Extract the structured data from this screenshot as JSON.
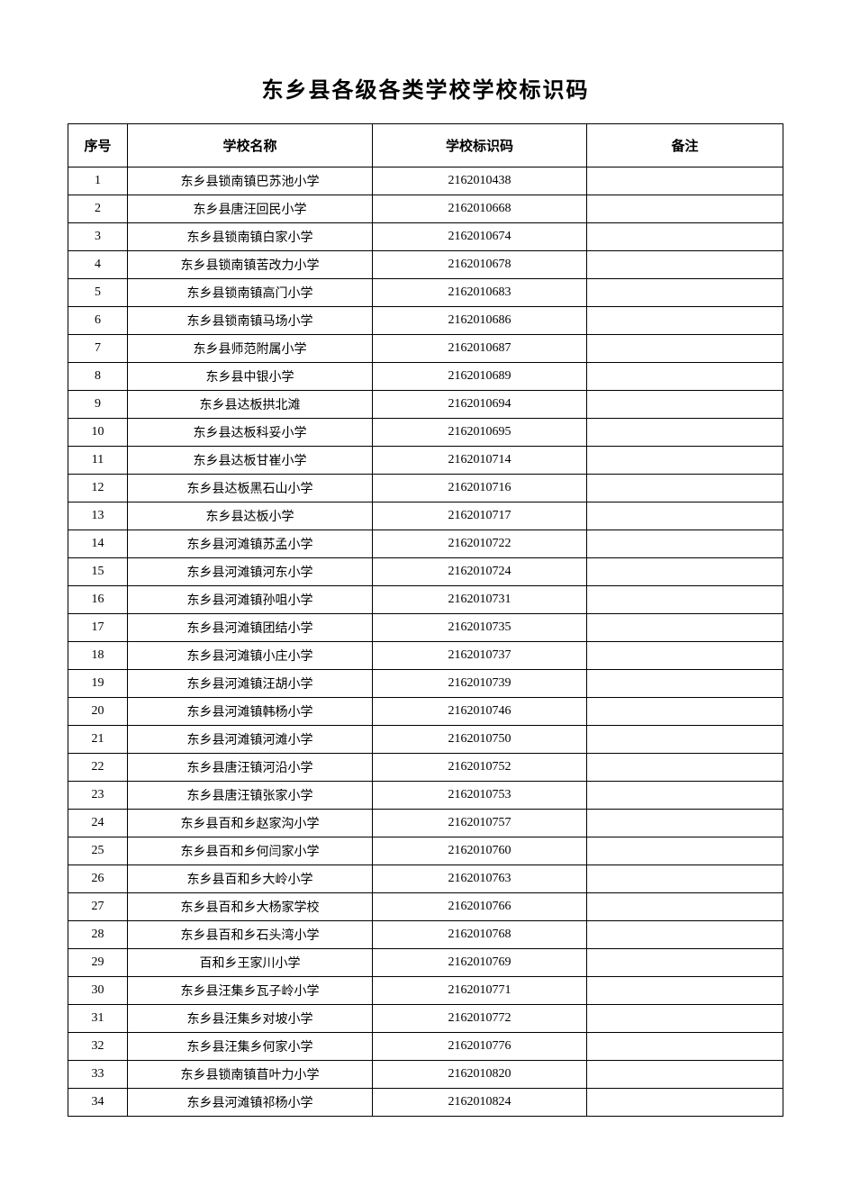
{
  "title": "东乡县各级各类学校学校标识码",
  "table": {
    "columns": [
      "序号",
      "学校名称",
      "学校标识码",
      "备注"
    ],
    "rows": [
      [
        "1",
        "东乡县锁南镇巴苏池小学",
        "2162010438",
        ""
      ],
      [
        "2",
        "东乡县唐汪回民小学",
        "2162010668",
        ""
      ],
      [
        "3",
        "东乡县锁南镇白家小学",
        "2162010674",
        ""
      ],
      [
        "4",
        "东乡县锁南镇苦改力小学",
        "2162010678",
        ""
      ],
      [
        "5",
        "东乡县锁南镇高门小学",
        "2162010683",
        ""
      ],
      [
        "6",
        "东乡县锁南镇马场小学",
        "2162010686",
        ""
      ],
      [
        "7",
        "东乡县师范附属小学",
        "2162010687",
        ""
      ],
      [
        "8",
        "东乡县中银小学",
        "2162010689",
        ""
      ],
      [
        "9",
        "东乡县达板拱北滩",
        "2162010694",
        ""
      ],
      [
        "10",
        "东乡县达板科妥小学",
        "2162010695",
        ""
      ],
      [
        "11",
        "东乡县达板甘崔小学",
        "2162010714",
        ""
      ],
      [
        "12",
        "东乡县达板黑石山小学",
        "2162010716",
        ""
      ],
      [
        "13",
        "东乡县达板小学",
        "2162010717",
        ""
      ],
      [
        "14",
        "东乡县河滩镇苏孟小学",
        "2162010722",
        ""
      ],
      [
        "15",
        "东乡县河滩镇河东小学",
        "2162010724",
        ""
      ],
      [
        "16",
        "东乡县河滩镇孙咀小学",
        "2162010731",
        ""
      ],
      [
        "17",
        "东乡县河滩镇团结小学",
        "2162010735",
        ""
      ],
      [
        "18",
        "东乡县河滩镇小庄小学",
        "2162010737",
        ""
      ],
      [
        "19",
        "东乡县河滩镇汪胡小学",
        "2162010739",
        ""
      ],
      [
        "20",
        "东乡县河滩镇韩杨小学",
        "2162010746",
        ""
      ],
      [
        "21",
        "东乡县河滩镇河滩小学",
        "2162010750",
        ""
      ],
      [
        "22",
        "东乡县唐汪镇河沿小学",
        "2162010752",
        ""
      ],
      [
        "23",
        "东乡县唐汪镇张家小学",
        "2162010753",
        ""
      ],
      [
        "24",
        "东乡县百和乡赵家沟小学",
        "2162010757",
        ""
      ],
      [
        "25",
        "东乡县百和乡何闫家小学",
        "2162010760",
        ""
      ],
      [
        "26",
        "东乡县百和乡大岭小学",
        "2162010763",
        ""
      ],
      [
        "27",
        "东乡县百和乡大杨家学校",
        "2162010766",
        ""
      ],
      [
        "28",
        "东乡县百和乡石头湾小学",
        "2162010768",
        ""
      ],
      [
        "29",
        "百和乡王家川小学",
        "2162010769",
        ""
      ],
      [
        "30",
        "东乡县汪集乡瓦子岭小学",
        "2162010771",
        ""
      ],
      [
        "31",
        "东乡县汪集乡对坡小学",
        "2162010772",
        ""
      ],
      [
        "32",
        "东乡县汪集乡何家小学",
        "2162010776",
        ""
      ],
      [
        "33",
        "东乡县锁南镇苜叶力小学",
        "2162010820",
        ""
      ],
      [
        "34",
        "东乡县河滩镇祁杨小学",
        "2162010824",
        ""
      ]
    ]
  }
}
